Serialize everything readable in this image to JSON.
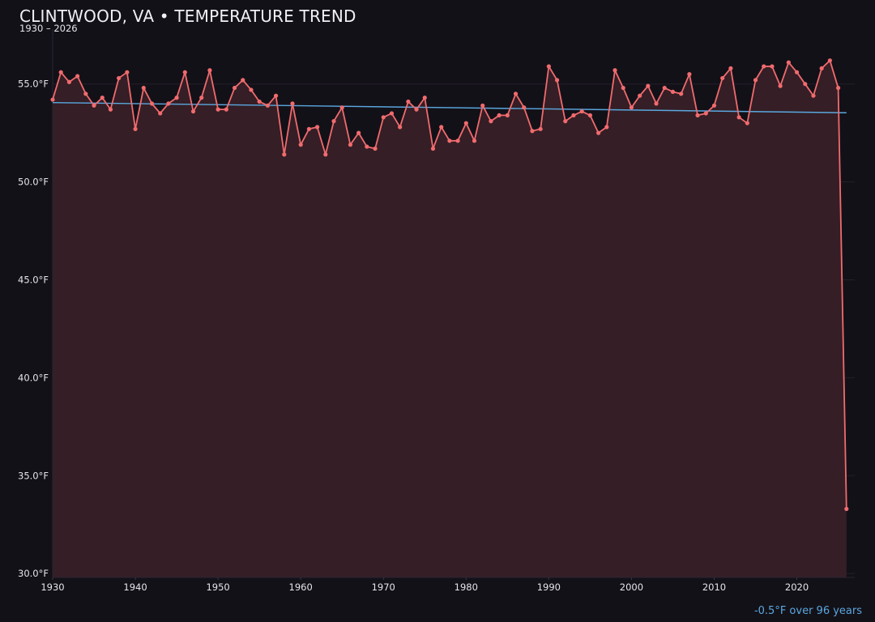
{
  "colors": {
    "background": "#131118",
    "series_line": "#f06b6e",
    "series_fill": "#351e25",
    "trend_line": "#5aa8e0",
    "grid": "#241f2b"
  },
  "chart_data": {
    "type": "line",
    "title": "CLINTWOOD, VA • TEMPERATURE TREND",
    "subtitle": "1930 – 2026",
    "xlabel": "",
    "ylabel": "",
    "xlim": [
      1930,
      2027
    ],
    "ylim": [
      29.8,
      57.8
    ],
    "x_ticks": [
      1930,
      1940,
      1950,
      1960,
      1970,
      1980,
      1990,
      2000,
      2010,
      2020
    ],
    "y_ticks": [
      30,
      35,
      40,
      45,
      50,
      55
    ],
    "y_tick_suffix": "°F",
    "grid": true,
    "legend": "none",
    "area_fill": true,
    "series": [
      {
        "x": [
          1930,
          1931,
          1932,
          1933,
          1934,
          1935,
          1936,
          1937,
          1938,
          1939,
          1940,
          1941,
          1942,
          1943,
          1944,
          1945,
          1946,
          1947,
          1948,
          1949,
          1950,
          1951,
          1952,
          1953,
          1954,
          1955,
          1956,
          1957,
          1958,
          1959,
          1960,
          1961,
          1962,
          1963,
          1964,
          1965,
          1966,
          1967,
          1968,
          1969,
          1970,
          1971,
          1972,
          1973,
          1974,
          1975,
          1976,
          1977,
          1978,
          1979,
          1980,
          1981,
          1982,
          1983,
          1984,
          1985,
          1986,
          1987,
          1988,
          1989,
          1990,
          1991,
          1992,
          1993,
          1994,
          1995,
          1996,
          1997,
          1998,
          1999,
          2000,
          2001,
          2002,
          2003,
          2004,
          2005,
          2006,
          2007,
          2008,
          2009,
          2010,
          2011,
          2012,
          2013,
          2014,
          2015,
          2016,
          2017,
          2018,
          2019,
          2020,
          2021,
          2022,
          2023,
          2024,
          2025,
          2026
        ],
        "values": [
          54.2,
          55.6,
          55.1,
          55.4,
          54.5,
          53.9,
          54.3,
          53.7,
          55.3,
          55.6,
          52.7,
          54.8,
          54.0,
          53.5,
          54.0,
          54.3,
          55.6,
          53.6,
          54.3,
          55.7,
          53.7,
          53.7,
          54.8,
          55.2,
          54.7,
          54.1,
          53.9,
          54.4,
          51.4,
          54.0,
          51.9,
          52.7,
          52.8,
          51.4,
          53.1,
          53.8,
          51.9,
          52.5,
          51.8,
          51.7,
          53.3,
          53.5,
          52.8,
          54.1,
          53.7,
          54.3,
          51.7,
          52.8,
          52.1,
          52.1,
          53.0,
          52.1,
          53.9,
          53.1,
          53.4,
          53.4,
          54.5,
          53.8,
          52.6,
          52.7,
          55.9,
          55.2,
          53.1,
          53.4,
          53.6,
          53.4,
          52.5,
          52.8,
          55.7,
          54.8,
          53.8,
          54.4,
          54.9,
          54.0,
          54.8,
          54.6,
          54.5,
          55.5,
          53.4,
          53.5,
          53.9,
          55.3,
          55.8,
          53.3,
          53.0,
          55.2,
          55.9,
          55.9,
          54.9,
          56.1,
          55.6,
          55.0,
          54.4,
          55.8,
          56.2,
          54.8,
          33.3
        ]
      }
    ],
    "trend": {
      "x": [
        1930,
        2026
      ],
      "values": [
        54.05,
        53.53
      ]
    },
    "trend_note": "-0.5°F over 96 years"
  }
}
